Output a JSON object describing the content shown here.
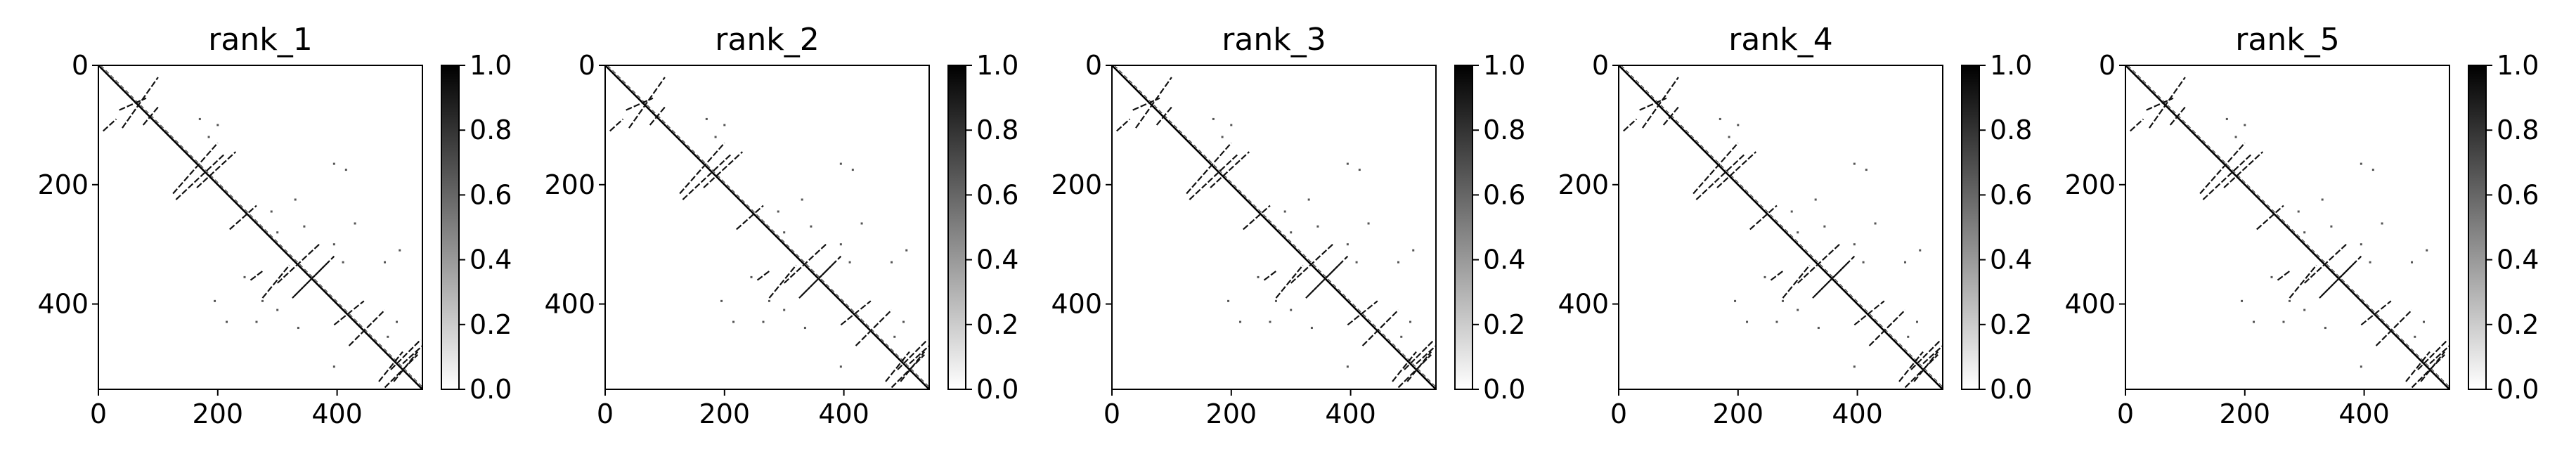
{
  "chart_data": [
    {
      "type": "heatmap",
      "title": "rank_1",
      "xlim": [
        0,
        543
      ],
      "ylim": [
        543,
        0
      ],
      "xticks": [
        0,
        200,
        400
      ],
      "yticks": [
        0,
        200,
        400
      ],
      "colorbar": {
        "cmap": "gray_r",
        "min": 0.0,
        "max": 1.0,
        "ticks": [
          "0.0",
          "0.2",
          "0.4",
          "0.6",
          "0.8",
          "1.0"
        ]
      },
      "main_diagonal": true,
      "contact_segments": [
        [
          8,
          110,
          30,
          90
        ],
        [
          35,
          75,
          80,
          55
        ],
        [
          40,
          105,
          100,
          20
        ],
        [
          75,
          100,
          100,
          70
        ],
        [
          125,
          215,
          200,
          130
        ],
        [
          130,
          225,
          210,
          150
        ],
        [
          165,
          205,
          230,
          145
        ],
        [
          220,
          275,
          265,
          235
        ],
        [
          255,
          360,
          275,
          345
        ],
        [
          275,
          390,
          320,
          335
        ],
        [
          300,
          365,
          370,
          300
        ],
        [
          325,
          390,
          380,
          335
        ],
        [
          330,
          385,
          395,
          320
        ],
        [
          395,
          435,
          445,
          395
        ],
        [
          420,
          470,
          480,
          410
        ],
        [
          470,
          530,
          510,
          480
        ],
        [
          490,
          510,
          540,
          460
        ],
        [
          495,
          530,
          535,
          480
        ],
        [
          510,
          500,
          543,
          470
        ],
        [
          480,
          540,
          535,
          485
        ]
      ],
      "contact_dots": [
        [
          170,
          90
        ],
        [
          185,
          120
        ],
        [
          200,
          100
        ],
        [
          395,
          165
        ],
        [
          415,
          175
        ],
        [
          290,
          245
        ],
        [
          330,
          225
        ],
        [
          300,
          280
        ],
        [
          345,
          270
        ],
        [
          195,
          395
        ],
        [
          215,
          430
        ],
        [
          265,
          430
        ],
        [
          300,
          410
        ],
        [
          395,
          300
        ],
        [
          410,
          330
        ],
        [
          480,
          330
        ],
        [
          505,
          310
        ],
        [
          395,
          505
        ],
        [
          485,
          455
        ],
        [
          500,
          430
        ],
        [
          245,
          355
        ],
        [
          275,
          395
        ],
        [
          335,
          440
        ],
        [
          430,
          265
        ]
      ]
    },
    {
      "type": "heatmap",
      "title": "rank_2",
      "xlim": [
        0,
        543
      ],
      "ylim": [
        543,
        0
      ],
      "xticks": [
        0,
        200,
        400
      ],
      "yticks": [
        0,
        200,
        400
      ],
      "colorbar": {
        "cmap": "gray_r",
        "min": 0.0,
        "max": 1.0,
        "ticks": [
          "0.0",
          "0.2",
          "0.4",
          "0.6",
          "0.8",
          "1.0"
        ]
      },
      "main_diagonal": true,
      "contact_segments": [
        [
          8,
          110,
          30,
          90
        ],
        [
          35,
          75,
          80,
          55
        ],
        [
          40,
          105,
          100,
          20
        ],
        [
          75,
          100,
          100,
          70
        ],
        [
          125,
          215,
          200,
          130
        ],
        [
          130,
          225,
          210,
          150
        ],
        [
          165,
          205,
          230,
          145
        ],
        [
          220,
          275,
          265,
          235
        ],
        [
          255,
          360,
          275,
          345
        ],
        [
          275,
          390,
          320,
          335
        ],
        [
          300,
          365,
          370,
          300
        ],
        [
          325,
          390,
          380,
          335
        ],
        [
          330,
          385,
          395,
          320
        ],
        [
          395,
          435,
          445,
          395
        ],
        [
          420,
          470,
          480,
          410
        ],
        [
          470,
          530,
          510,
          480
        ],
        [
          490,
          510,
          540,
          460
        ],
        [
          495,
          530,
          535,
          480
        ],
        [
          510,
          500,
          543,
          470
        ],
        [
          480,
          540,
          535,
          485
        ]
      ],
      "contact_dots": [
        [
          170,
          90
        ],
        [
          185,
          120
        ],
        [
          200,
          100
        ],
        [
          395,
          165
        ],
        [
          415,
          175
        ],
        [
          290,
          245
        ],
        [
          330,
          225
        ],
        [
          300,
          280
        ],
        [
          345,
          270
        ],
        [
          195,
          395
        ],
        [
          215,
          430
        ],
        [
          265,
          430
        ],
        [
          300,
          410
        ],
        [
          395,
          300
        ],
        [
          410,
          330
        ],
        [
          480,
          330
        ],
        [
          505,
          310
        ],
        [
          395,
          505
        ],
        [
          485,
          455
        ],
        [
          500,
          430
        ],
        [
          245,
          355
        ],
        [
          275,
          395
        ],
        [
          335,
          440
        ],
        [
          430,
          265
        ]
      ]
    },
    {
      "type": "heatmap",
      "title": "rank_3",
      "xlim": [
        0,
        543
      ],
      "ylim": [
        543,
        0
      ],
      "xticks": [
        0,
        200,
        400
      ],
      "yticks": [
        0,
        200,
        400
      ],
      "colorbar": {
        "cmap": "gray_r",
        "min": 0.0,
        "max": 1.0,
        "ticks": [
          "0.0",
          "0.2",
          "0.4",
          "0.6",
          "0.8",
          "1.0"
        ]
      },
      "main_diagonal": true,
      "contact_segments": [
        [
          8,
          110,
          30,
          90
        ],
        [
          35,
          75,
          80,
          55
        ],
        [
          40,
          105,
          100,
          20
        ],
        [
          75,
          100,
          100,
          70
        ],
        [
          125,
          215,
          200,
          130
        ],
        [
          130,
          225,
          210,
          150
        ],
        [
          165,
          205,
          230,
          145
        ],
        [
          220,
          275,
          265,
          235
        ],
        [
          255,
          360,
          275,
          345
        ],
        [
          275,
          390,
          320,
          335
        ],
        [
          300,
          365,
          370,
          300
        ],
        [
          325,
          390,
          380,
          335
        ],
        [
          330,
          385,
          395,
          320
        ],
        [
          395,
          435,
          445,
          395
        ],
        [
          420,
          470,
          480,
          410
        ],
        [
          470,
          530,
          510,
          480
        ],
        [
          490,
          510,
          540,
          460
        ],
        [
          495,
          530,
          535,
          480
        ],
        [
          510,
          500,
          543,
          470
        ],
        [
          480,
          540,
          535,
          485
        ]
      ],
      "contact_dots": [
        [
          170,
          90
        ],
        [
          185,
          120
        ],
        [
          200,
          100
        ],
        [
          395,
          165
        ],
        [
          415,
          175
        ],
        [
          290,
          245
        ],
        [
          330,
          225
        ],
        [
          300,
          280
        ],
        [
          345,
          270
        ],
        [
          195,
          395
        ],
        [
          215,
          430
        ],
        [
          265,
          430
        ],
        [
          300,
          410
        ],
        [
          395,
          300
        ],
        [
          410,
          330
        ],
        [
          480,
          330
        ],
        [
          505,
          310
        ],
        [
          395,
          505
        ],
        [
          485,
          455
        ],
        [
          500,
          430
        ],
        [
          245,
          355
        ],
        [
          275,
          395
        ],
        [
          335,
          440
        ],
        [
          430,
          265
        ]
      ]
    },
    {
      "type": "heatmap",
      "title": "rank_4",
      "xlim": [
        0,
        543
      ],
      "ylim": [
        543,
        0
      ],
      "xticks": [
        0,
        200,
        400
      ],
      "yticks": [
        0,
        200,
        400
      ],
      "colorbar": {
        "cmap": "gray_r",
        "min": 0.0,
        "max": 1.0,
        "ticks": [
          "0.0",
          "0.2",
          "0.4",
          "0.6",
          "0.8",
          "1.0"
        ]
      },
      "main_diagonal": true,
      "contact_segments": [
        [
          8,
          110,
          30,
          90
        ],
        [
          35,
          75,
          80,
          55
        ],
        [
          40,
          105,
          100,
          20
        ],
        [
          75,
          100,
          100,
          70
        ],
        [
          125,
          215,
          200,
          130
        ],
        [
          130,
          225,
          210,
          150
        ],
        [
          165,
          205,
          230,
          145
        ],
        [
          220,
          275,
          265,
          235
        ],
        [
          255,
          360,
          275,
          345
        ],
        [
          275,
          390,
          320,
          335
        ],
        [
          300,
          365,
          370,
          300
        ],
        [
          325,
          390,
          380,
          335
        ],
        [
          330,
          385,
          395,
          320
        ],
        [
          395,
          435,
          445,
          395
        ],
        [
          420,
          470,
          480,
          410
        ],
        [
          470,
          530,
          510,
          480
        ],
        [
          490,
          510,
          540,
          460
        ],
        [
          495,
          530,
          535,
          480
        ],
        [
          510,
          500,
          543,
          470
        ],
        [
          480,
          540,
          535,
          485
        ]
      ],
      "contact_dots": [
        [
          170,
          90
        ],
        [
          185,
          120
        ],
        [
          200,
          100
        ],
        [
          395,
          165
        ],
        [
          415,
          175
        ],
        [
          290,
          245
        ],
        [
          330,
          225
        ],
        [
          300,
          280
        ],
        [
          345,
          270
        ],
        [
          195,
          395
        ],
        [
          215,
          430
        ],
        [
          265,
          430
        ],
        [
          300,
          410
        ],
        [
          395,
          300
        ],
        [
          410,
          330
        ],
        [
          480,
          330
        ],
        [
          505,
          310
        ],
        [
          395,
          505
        ],
        [
          485,
          455
        ],
        [
          500,
          430
        ],
        [
          245,
          355
        ],
        [
          275,
          395
        ],
        [
          335,
          440
        ],
        [
          430,
          265
        ]
      ]
    },
    {
      "type": "heatmap",
      "title": "rank_5",
      "xlim": [
        0,
        543
      ],
      "ylim": [
        543,
        0
      ],
      "xticks": [
        0,
        200,
        400
      ],
      "yticks": [
        0,
        200,
        400
      ],
      "colorbar": {
        "cmap": "gray_r",
        "min": 0.0,
        "max": 1.0,
        "ticks": [
          "0.0",
          "0.2",
          "0.4",
          "0.6",
          "0.8",
          "1.0"
        ]
      },
      "main_diagonal": true,
      "contact_segments": [
        [
          8,
          110,
          30,
          90
        ],
        [
          35,
          75,
          80,
          55
        ],
        [
          40,
          105,
          100,
          20
        ],
        [
          75,
          100,
          100,
          70
        ],
        [
          125,
          215,
          200,
          130
        ],
        [
          130,
          225,
          210,
          150
        ],
        [
          165,
          205,
          230,
          145
        ],
        [
          220,
          275,
          265,
          235
        ],
        [
          255,
          360,
          275,
          345
        ],
        [
          275,
          390,
          320,
          335
        ],
        [
          300,
          365,
          370,
          300
        ],
        [
          325,
          390,
          380,
          335
        ],
        [
          330,
          385,
          395,
          320
        ],
        [
          395,
          435,
          445,
          395
        ],
        [
          420,
          470,
          480,
          410
        ],
        [
          470,
          530,
          510,
          480
        ],
        [
          490,
          510,
          540,
          460
        ],
        [
          495,
          530,
          535,
          480
        ],
        [
          510,
          500,
          543,
          470
        ],
        [
          480,
          540,
          535,
          485
        ]
      ],
      "contact_dots": [
        [
          170,
          90
        ],
        [
          185,
          120
        ],
        [
          200,
          100
        ],
        [
          395,
          165
        ],
        [
          415,
          175
        ],
        [
          290,
          245
        ],
        [
          330,
          225
        ],
        [
          300,
          280
        ],
        [
          345,
          270
        ],
        [
          195,
          395
        ],
        [
          215,
          430
        ],
        [
          265,
          430
        ],
        [
          300,
          410
        ],
        [
          395,
          300
        ],
        [
          410,
          330
        ],
        [
          480,
          330
        ],
        [
          505,
          310
        ],
        [
          395,
          505
        ],
        [
          485,
          455
        ],
        [
          500,
          430
        ],
        [
          245,
          355
        ],
        [
          275,
          395
        ],
        [
          335,
          440
        ],
        [
          430,
          265
        ]
      ]
    }
  ]
}
